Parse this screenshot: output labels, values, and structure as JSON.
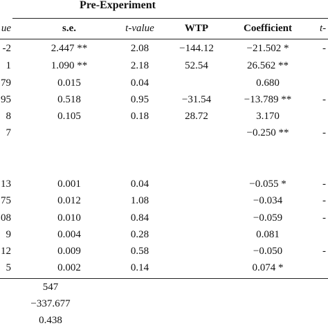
{
  "table": {
    "group_header": "Pre-Experiment",
    "headers": {
      "left_partial": "ue",
      "se": "s.e.",
      "tvalue": "t-value",
      "wtp": "WTP",
      "coefficient": "Coefficient",
      "right_partial": "t-"
    },
    "rows": [
      {
        "left": "-2",
        "se": "2.447 **",
        "t": "2.08",
        "wtp": "−144.12",
        "coef": "−21.502 *",
        "right": "-"
      },
      {
        "left": "1",
        "se": "1.090 **",
        "t": "2.18",
        "wtp": "52.54",
        "coef": "26.562 **",
        "right": ""
      },
      {
        "left": "79",
        "se": "0.015",
        "t": "0.04",
        "wtp": "",
        "coef": "0.680",
        "right": ""
      },
      {
        "left": "95",
        "se": "0.518",
        "t": "0.95",
        "wtp": "−31.54",
        "coef": "−13.789 **",
        "right": "-"
      },
      {
        "left": "8",
        "se": "0.105",
        "t": "0.18",
        "wtp": "28.72",
        "coef": "3.170",
        "right": ""
      },
      {
        "left": "7",
        "se": "",
        "t": "",
        "wtp": "",
        "coef": "−0.250 **",
        "right": "-"
      },
      {
        "left": "",
        "se": "",
        "t": "",
        "wtp": "",
        "coef": "",
        "right": ""
      },
      {
        "left": "",
        "se": "",
        "t": "",
        "wtp": "",
        "coef": "",
        "right": ""
      },
      {
        "left": "13",
        "se": "0.001",
        "t": "0.04",
        "wtp": "",
        "coef": "−0.055 *",
        "right": "-"
      },
      {
        "left": "75",
        "se": "0.012",
        "t": "1.08",
        "wtp": "",
        "coef": "−0.034",
        "right": "-"
      },
      {
        "left": "08",
        "se": "0.010",
        "t": "0.84",
        "wtp": "",
        "coef": "−0.059",
        "right": "-"
      },
      {
        "left": "9",
        "se": "0.004",
        "t": "0.28",
        "wtp": "",
        "coef": "0.081",
        "right": ""
      },
      {
        "left": "12",
        "se": "0.009",
        "t": "0.58",
        "wtp": "",
        "coef": "−0.050",
        "right": "-"
      },
      {
        "left": "5",
        "se": "0.002",
        "t": "0.14",
        "wtp": "",
        "coef": "0.074 *",
        "right": ""
      }
    ],
    "footer": [
      "547",
      "−337.677",
      "0.438"
    ]
  }
}
